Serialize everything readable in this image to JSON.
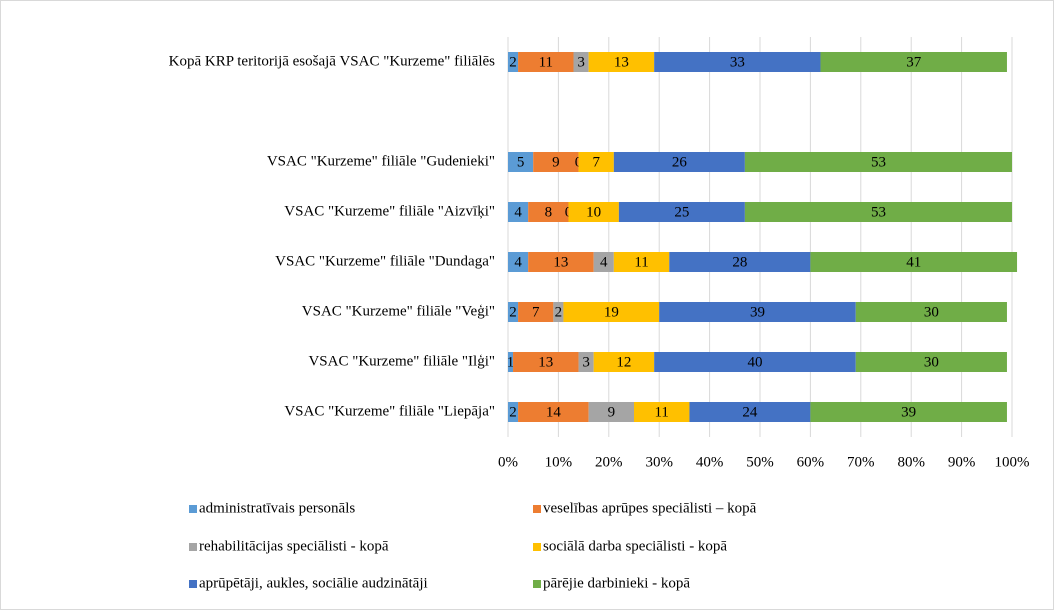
{
  "chart_data": {
    "type": "bar",
    "orientation": "horizontal",
    "stacked": true,
    "categories": [
      "Kopā KRP teritorijā esošajā VSAC \"Kurzeme\" filiālēs",
      null,
      "VSAC \"Kurzeme\" filiāle \"Gudenieki\"",
      "VSAC \"Kurzeme\" filiāle \"Aizvīķi\"",
      "VSAC \"Kurzeme\" filiāle \"Dundaga\"",
      "VSAC \"Kurzeme\" filiāle \"Veģi\"",
      "VSAC \"Kurzeme\" filiāle \"Ilģi\"",
      "VSAC \"Kurzeme\" filiāle \"Liepāja\""
    ],
    "series": [
      {
        "name": "administratīvais personāls",
        "color": "#5b9bd5",
        "values": [
          2,
          null,
          5,
          4,
          4,
          2,
          1,
          2
        ]
      },
      {
        "name": "veselības aprūpes  speciālisti – kopā",
        "color": "#ed7d31",
        "values": [
          11,
          null,
          9,
          8,
          13,
          7,
          13,
          14
        ]
      },
      {
        "name": "rehabilitācijas speciālisti - kopā",
        "color": "#a5a5a5",
        "values": [
          3,
          null,
          0,
          0,
          4,
          2,
          3,
          9
        ]
      },
      {
        "name": "sociālā darba speciālisti - kopā",
        "color": "#ffc000",
        "values": [
          13,
          null,
          7,
          10,
          11,
          19,
          12,
          11
        ]
      },
      {
        "name": "aprūpētāji, aukles, sociālie audzinātāji",
        "color": "#4472c4",
        "values": [
          33,
          null,
          26,
          25,
          28,
          39,
          40,
          24
        ]
      },
      {
        "name": "pārējie darbinieki - kopā",
        "color": "#70ad47",
        "values": [
          37,
          null,
          53,
          53,
          41,
          30,
          30,
          39
        ]
      }
    ],
    "xlim": [
      0,
      100
    ],
    "xticks": [
      {
        "value": 0,
        "label": "0%"
      },
      {
        "value": 10,
        "label": "10%"
      },
      {
        "value": 20,
        "label": "20%"
      },
      {
        "value": 30,
        "label": "30%"
      },
      {
        "value": 40,
        "label": "40%"
      },
      {
        "value": 50,
        "label": "50%"
      },
      {
        "value": 60,
        "label": "60%"
      },
      {
        "value": 70,
        "label": "70%"
      },
      {
        "value": 80,
        "label": "80%"
      },
      {
        "value": 90,
        "label": "90%"
      },
      {
        "value": 100,
        "label": "100%"
      }
    ],
    "grid": true,
    "legend": "bottom"
  }
}
